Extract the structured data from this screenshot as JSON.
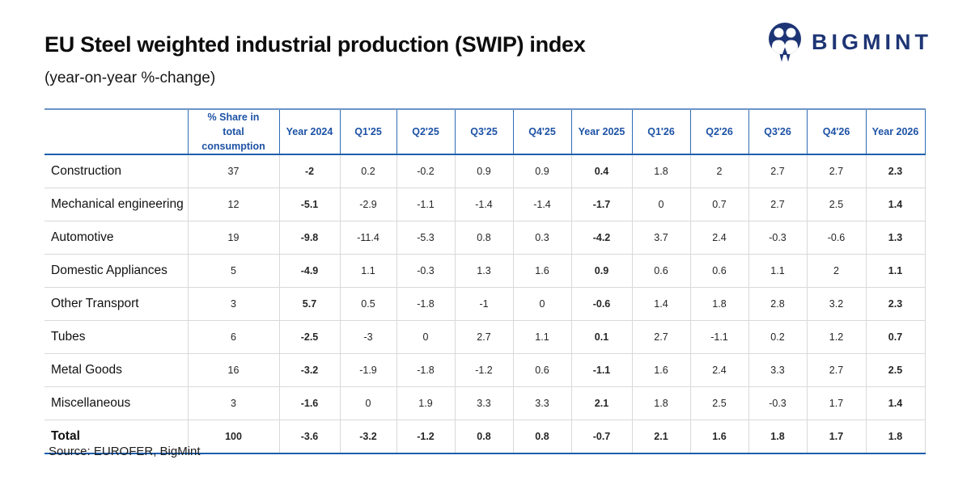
{
  "page": {
    "title": "EU Steel weighted industrial production (SWIP) index",
    "subtitle": "(year-on-year %-change)",
    "source": "Source: EUROFER, BigMint"
  },
  "logo": {
    "text": "BIGMINT",
    "icon": "bigmint-people-circle-icon",
    "color": "#1e3575"
  },
  "colors": {
    "header_text": "#1d52a5",
    "header_border": "#2e6cb5",
    "accent_rule": "#1d5fae",
    "grid_line": "#d9d9d9"
  },
  "chart_data": {
    "type": "table",
    "title": "EU Steel weighted industrial production (SWIP) index",
    "subtitle": "(year-on-year %-change)",
    "row_header_label": "",
    "columns": [
      {
        "label": "% Share in\ntotal consumption",
        "emphasis": false
      },
      {
        "label": "Year 2024",
        "emphasis": true
      },
      {
        "label": "Q1'25",
        "emphasis": false
      },
      {
        "label": "Q2'25",
        "emphasis": false
      },
      {
        "label": "Q3'25",
        "emphasis": false
      },
      {
        "label": "Q4'25",
        "emphasis": false
      },
      {
        "label": "Year 2025",
        "emphasis": true
      },
      {
        "label": "Q1'26",
        "emphasis": false
      },
      {
        "label": "Q2'26",
        "emphasis": false
      },
      {
        "label": "Q3'26",
        "emphasis": false
      },
      {
        "label": "Q4'26",
        "emphasis": false
      },
      {
        "label": "Year 2026",
        "emphasis": true
      }
    ],
    "rows": [
      {
        "label": "Construction",
        "emphasis": false,
        "values": [
          "37",
          "-2",
          "0.2",
          "-0.2",
          "0.9",
          "0.9",
          "0.4",
          "1.8",
          "2",
          "2.7",
          "2.7",
          "2.3"
        ]
      },
      {
        "label": "Mechanical engineering",
        "emphasis": false,
        "values": [
          "12",
          "-5.1",
          "-2.9",
          "-1.1",
          "-1.4",
          "-1.4",
          "-1.7",
          "0",
          "0.7",
          "2.7",
          "2.5",
          "1.4"
        ]
      },
      {
        "label": "Automotive",
        "emphasis": false,
        "values": [
          "19",
          "-9.8",
          "-11.4",
          "-5.3",
          "0.8",
          "0.3",
          "-4.2",
          "3.7",
          "2.4",
          "-0.3",
          "-0.6",
          "1.3"
        ]
      },
      {
        "label": "Domestic Appliances",
        "emphasis": false,
        "values": [
          "5",
          "-4.9",
          "1.1",
          "-0.3",
          "1.3",
          "1.6",
          "0.9",
          "0.6",
          "0.6",
          "1.1",
          "2",
          "1.1"
        ]
      },
      {
        "label": "Other Transport",
        "emphasis": false,
        "values": [
          "3",
          "5.7",
          "0.5",
          "-1.8",
          "-1",
          "0",
          "-0.6",
          "1.4",
          "1.8",
          "2.8",
          "3.2",
          "2.3"
        ]
      },
      {
        "label": "Tubes",
        "emphasis": false,
        "values": [
          "6",
          "-2.5",
          "-3",
          "0",
          "2.7",
          "1.1",
          "0.1",
          "2.7",
          "-1.1",
          "0.2",
          "1.2",
          "0.7"
        ]
      },
      {
        "label": "Metal Goods",
        "emphasis": false,
        "values": [
          "16",
          "-3.2",
          "-1.9",
          "-1.8",
          "-1.2",
          "0.6",
          "-1.1",
          "1.6",
          "2.4",
          "3.3",
          "2.7",
          "2.5"
        ]
      },
      {
        "label": "Miscellaneous",
        "emphasis": false,
        "values": [
          "3",
          "-1.6",
          "0",
          "1.9",
          "3.3",
          "3.3",
          "2.1",
          "1.8",
          "2.5",
          "-0.3",
          "1.7",
          "1.4"
        ]
      },
      {
        "label": "Total",
        "emphasis": true,
        "values": [
          "100",
          "-3.6",
          "-3.2",
          "-1.2",
          "0.8",
          "0.8",
          "-0.7",
          "2.1",
          "1.6",
          "1.8",
          "1.7",
          "1.8"
        ]
      }
    ]
  }
}
